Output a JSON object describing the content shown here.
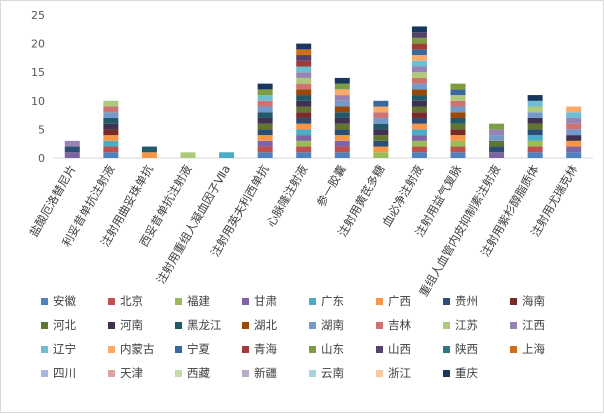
{
  "chart_data": {
    "type": "bar",
    "stacked": true,
    "title": "",
    "xlabel": "",
    "ylabel": "",
    "ylim": [
      0,
      25
    ],
    "yticks": [
      0,
      5,
      10,
      15,
      20,
      25
    ],
    "grid": "none",
    "legend_position": "bottom",
    "categories": [
      "盐酸厄洛替尼片",
      "利妥昔单抗注射液",
      "注射用曲妥珠单抗",
      "西妥昔单抗注射液",
      "注射用重组人凝血因子Ⅶa",
      "注射用英夫利西单抗",
      "心脉隆注射液",
      "参一胶囊",
      "注射用黄芪多糖",
      "血必净注射液",
      "注射用益气复脉",
      "重组人血管内皮抑制素注射液",
      "注射用紫杉醇脂质体",
      "注射用尤瑞克林"
    ],
    "series": [
      {
        "name": "安徽",
        "color": "#4F81BD",
        "values": [
          0,
          1,
          0,
          0,
          0,
          1,
          1,
          1,
          0,
          1,
          1,
          0,
          1,
          1
        ]
      },
      {
        "name": "北京",
        "color": "#C0504D",
        "values": [
          0,
          1,
          0,
          0,
          0,
          1,
          1,
          1,
          0,
          1,
          1,
          0,
          1,
          0
        ]
      },
      {
        "name": "福建",
        "color": "#9BBB59",
        "values": [
          0,
          0,
          0,
          0,
          0,
          0,
          1,
          0,
          1,
          1,
          1,
          0,
          1,
          0
        ]
      },
      {
        "name": "甘肃",
        "color": "#8064A2",
        "values": [
          1,
          0,
          0,
          0,
          0,
          1,
          1,
          1,
          0,
          1,
          0,
          1,
          0,
          1
        ]
      },
      {
        "name": "广东",
        "color": "#4BACC6",
        "values": [
          0,
          1,
          0,
          0,
          1,
          0,
          1,
          0,
          0,
          1,
          0,
          0,
          1,
          0
        ]
      },
      {
        "name": "广西",
        "color": "#F79646",
        "values": [
          0,
          1,
          1,
          0,
          0,
          1,
          1,
          1,
          1,
          1,
          1,
          0,
          0,
          1
        ]
      },
      {
        "name": "贵州",
        "color": "#2C4D75",
        "values": [
          1,
          0,
          0,
          0,
          0,
          1,
          1,
          1,
          1,
          1,
          0,
          1,
          1,
          0
        ]
      },
      {
        "name": "海南",
        "color": "#772C2A",
        "values": [
          0,
          1,
          0,
          0,
          0,
          0,
          1,
          0,
          0,
          1,
          1,
          0,
          0,
          0
        ]
      },
      {
        "name": "河北",
        "color": "#5F7530",
        "values": [
          0,
          0,
          0,
          0,
          0,
          1,
          1,
          1,
          1,
          1,
          1,
          1,
          1,
          0
        ]
      },
      {
        "name": "河南",
        "color": "#403151",
        "values": [
          0,
          1,
          0,
          0,
          0,
          1,
          1,
          1,
          1,
          1,
          0,
          0,
          1,
          1
        ]
      },
      {
        "name": "黑龙江",
        "color": "#215968",
        "values": [
          0,
          1,
          1,
          0,
          0,
          1,
          1,
          1,
          1,
          1,
          1,
          0,
          0,
          0
        ]
      },
      {
        "name": "湖北",
        "color": "#984807",
        "values": [
          0,
          0,
          0,
          0,
          0,
          0,
          1,
          1,
          0,
          1,
          1,
          0,
          0,
          0
        ]
      },
      {
        "name": "湖南",
        "color": "#729ACA",
        "values": [
          0,
          1,
          0,
          0,
          0,
          1,
          0,
          1,
          1,
          1,
          1,
          1,
          1,
          1
        ]
      },
      {
        "name": "吉林",
        "color": "#CD7371",
        "values": [
          0,
          1,
          0,
          0,
          0,
          1,
          1,
          0,
          1,
          1,
          1,
          0,
          0,
          1
        ]
      },
      {
        "name": "江苏",
        "color": "#AFC97A",
        "values": [
          0,
          1,
          0,
          1,
          0,
          0,
          1,
          0,
          0,
          1,
          1,
          0,
          1,
          0
        ]
      },
      {
        "name": "江西",
        "color": "#9983B5",
        "values": [
          1,
          0,
          0,
          0,
          0,
          0,
          1,
          1,
          0,
          1,
          0,
          1,
          0,
          1
        ]
      },
      {
        "name": "辽宁",
        "color": "#6FBDD1",
        "values": [
          0,
          0,
          0,
          0,
          0,
          1,
          1,
          0,
          0,
          1,
          0,
          0,
          1,
          1
        ]
      },
      {
        "name": "内蒙古",
        "color": "#F9AB6B",
        "values": [
          0,
          0,
          0,
          0,
          0,
          0,
          0,
          1,
          1,
          1,
          0,
          0,
          0,
          1
        ]
      },
      {
        "name": "宁夏",
        "color": "#3A679C",
        "values": [
          0,
          0,
          0,
          0,
          0,
          0,
          0,
          0,
          1,
          1,
          1,
          0,
          0,
          0
        ]
      },
      {
        "name": "青海",
        "color": "#9F3B38",
        "values": [
          0,
          0,
          0,
          0,
          0,
          0,
          1,
          0,
          0,
          1,
          0,
          0,
          0,
          0
        ]
      },
      {
        "name": "山东",
        "color": "#7E9C40",
        "values": [
          0,
          0,
          0,
          0,
          0,
          1,
          0,
          1,
          0,
          1,
          1,
          1,
          0,
          0
        ]
      },
      {
        "name": "山西",
        "color": "#55426C",
        "values": [
          0,
          0,
          0,
          0,
          0,
          0,
          1,
          0,
          0,
          1,
          0,
          0,
          0,
          0
        ]
      },
      {
        "name": "陕西",
        "color": "#2C768B",
        "values": [
          0,
          0,
          0,
          0,
          0,
          0,
          0,
          0,
          0,
          0,
          0,
          0,
          0,
          0
        ]
      },
      {
        "name": "上海",
        "color": "#CC6D1B",
        "values": [
          0,
          0,
          0,
          0,
          0,
          0,
          1,
          0,
          0,
          0,
          0,
          0,
          0,
          0
        ]
      },
      {
        "name": "四川",
        "color": "#A6B7DA",
        "values": [
          0,
          0,
          0,
          0,
          0,
          0,
          0,
          0,
          0,
          0,
          0,
          0,
          0,
          0
        ]
      },
      {
        "name": "天津",
        "color": "#DBA3A2",
        "values": [
          0,
          0,
          0,
          0,
          0,
          0,
          0,
          0,
          0,
          0,
          0,
          0,
          0,
          0
        ]
      },
      {
        "name": "西藏",
        "color": "#C7DAAE",
        "values": [
          0,
          0,
          0,
          0,
          0,
          0,
          0,
          0,
          0,
          0,
          0,
          0,
          0,
          0
        ]
      },
      {
        "name": "新疆",
        "color": "#B8ABCB",
        "values": [
          0,
          0,
          0,
          0,
          0,
          0,
          0,
          0,
          0,
          0,
          0,
          0,
          0,
          0
        ]
      },
      {
        "name": "云南",
        "color": "#A5D3E1",
        "values": [
          0,
          0,
          0,
          0,
          0,
          0,
          0,
          0,
          0,
          0,
          0,
          0,
          0,
          0
        ]
      },
      {
        "name": "浙江",
        "color": "#FBC79E",
        "values": [
          0,
          0,
          0,
          0,
          0,
          0,
          0,
          0,
          0,
          0,
          0,
          0,
          0,
          0
        ]
      },
      {
        "name": "重庆",
        "color": "#17375E",
        "values": [
          0,
          0,
          0,
          0,
          0,
          1,
          1,
          1,
          0,
          1,
          0,
          0,
          1,
          0
        ]
      }
    ]
  }
}
